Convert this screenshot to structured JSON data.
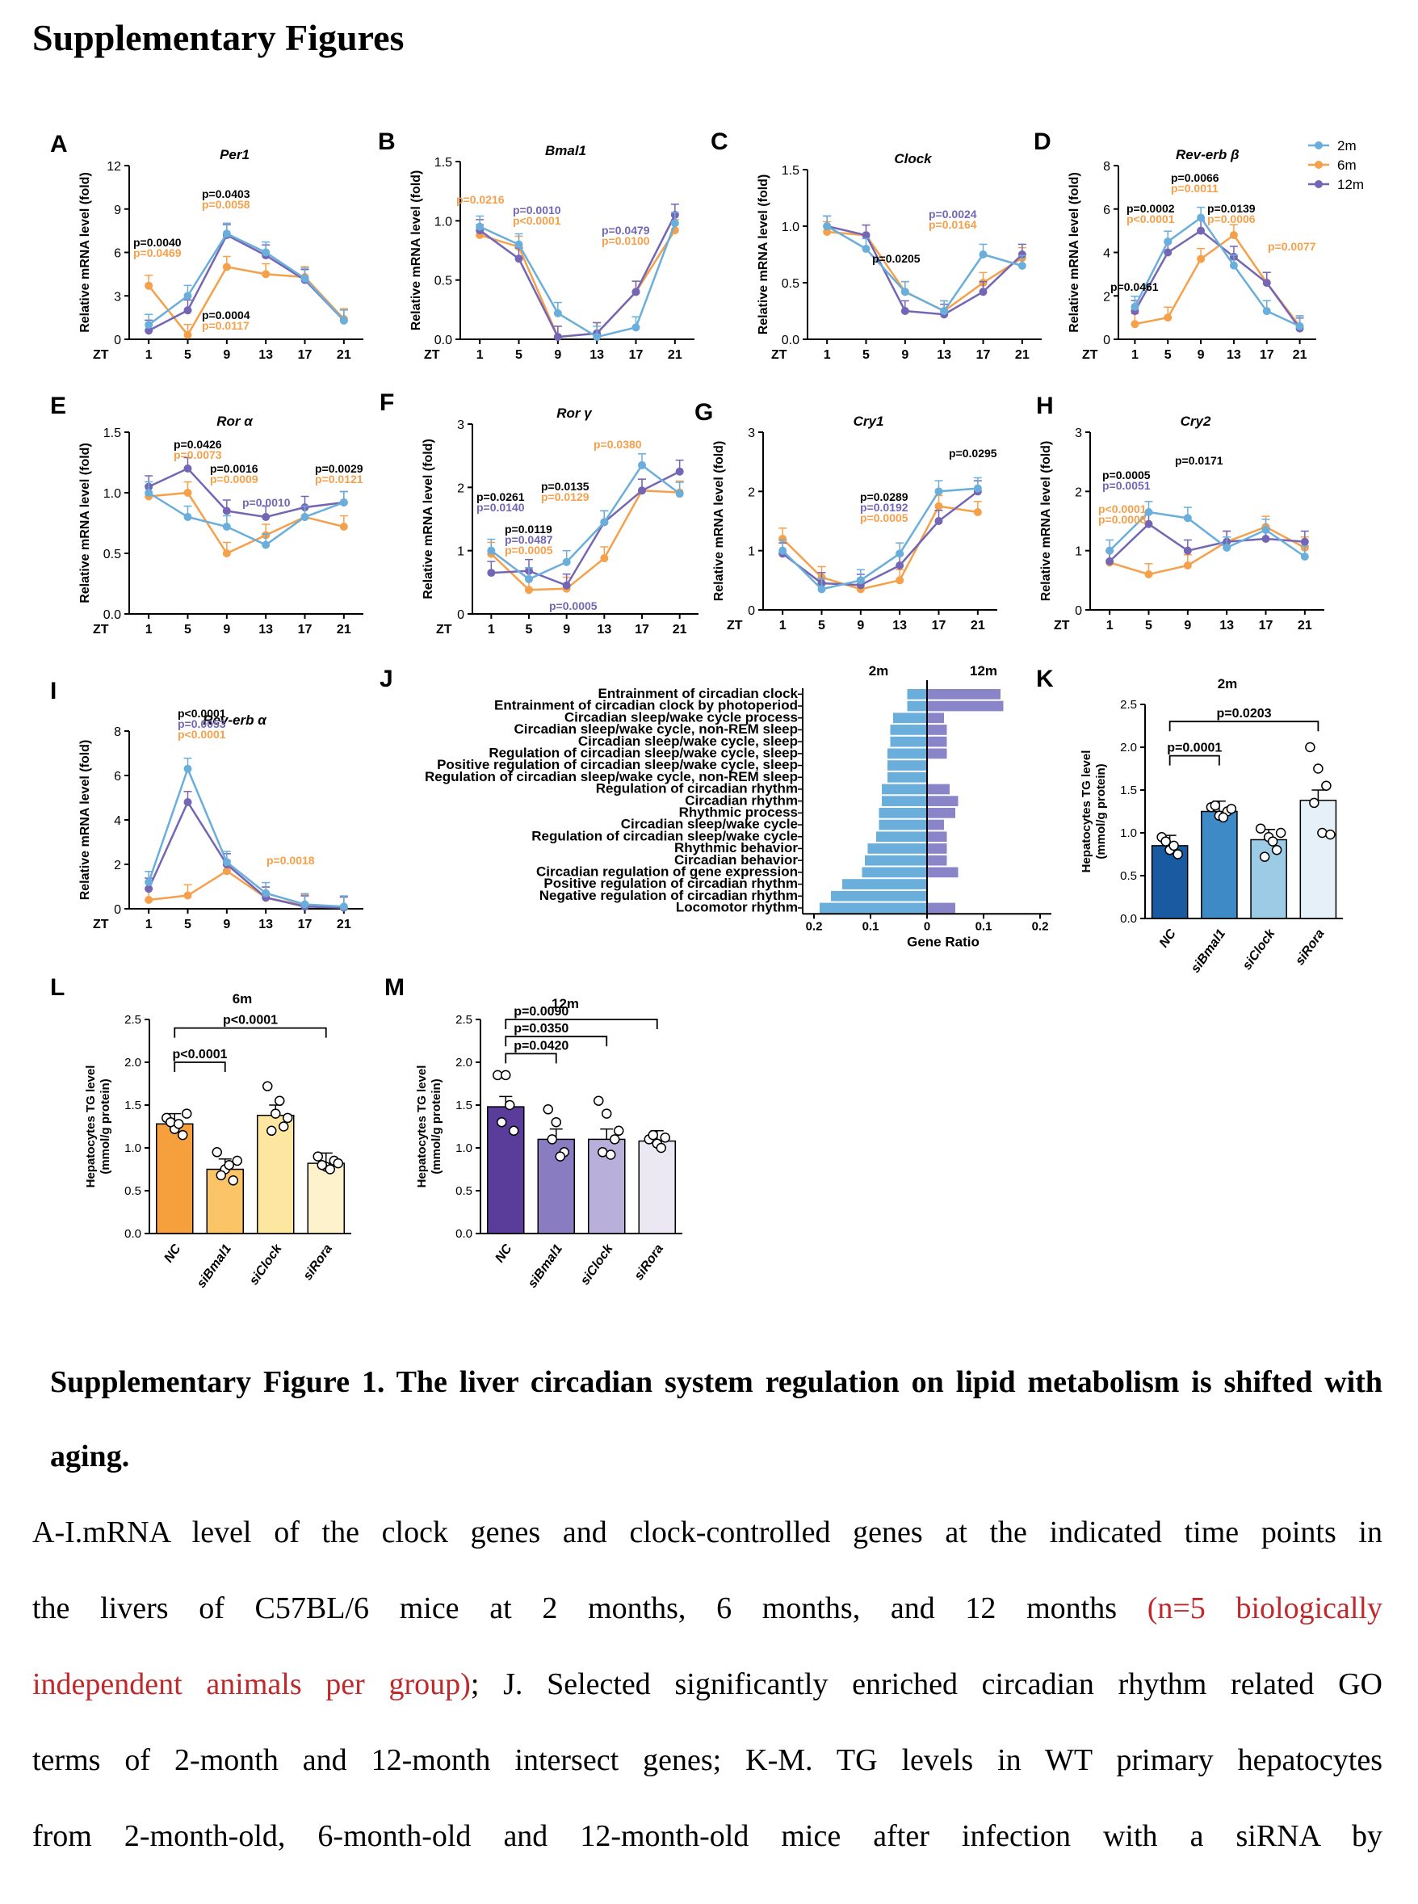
{
  "heading": "Supplementary Figures",
  "colors": {
    "m2": "#6aaedb",
    "m6": "#f5a04a",
    "m12": "#7466b5"
  },
  "legend": [
    "2m",
    "6m",
    "12m"
  ],
  "zt_label": "ZT",
  "zt_ticks": [
    "1",
    "5",
    "9",
    "13",
    "17",
    "21"
  ],
  "ylabel_mrna": "Relative mRNA level (fold)",
  "ylabel_tg": [
    "Hepatocytes TG level",
    "(mmol/g protein)"
  ],
  "line_panels": [
    {
      "letter": "A",
      "gene": "Per1",
      "yticks": [
        "0",
        "3",
        "6",
        "9",
        "12"
      ],
      "ymax": 12,
      "m2": [
        1.0,
        3.0,
        7.3,
        6.0,
        4.2,
        1.3
      ],
      "m6": [
        3.7,
        0.3,
        5.0,
        4.5,
        4.3,
        1.4
      ],
      "m12": [
        0.6,
        2.0,
        7.2,
        5.8,
        4.1,
        1.3
      ],
      "pvals": [
        {
          "p2": "p=0.0040",
          "p6": "p=0.0469"
        },
        {
          "p2": "p=0.0403",
          "p6": "p=0.0058"
        },
        {
          "p2": "p=0.0004",
          "p6": "p=0.0117"
        }
      ]
    },
    {
      "letter": "B",
      "gene": "Bmal1",
      "yticks": [
        "0.0",
        "0.5",
        "1.0",
        "1.5"
      ],
      "ymax": 1.5,
      "m2": [
        0.95,
        0.8,
        0.22,
        0.02,
        0.1,
        0.98
      ],
      "m6": [
        0.88,
        0.78,
        0.02,
        0.05,
        0.4,
        0.92
      ],
      "m12": [
        0.92,
        0.68,
        0.02,
        0.05,
        0.4,
        1.05
      ],
      "pvals": [
        {
          "p6": "p=0.0216"
        },
        {
          "p12": "p=0.0010",
          "p6": "p<0.0001"
        },
        {
          "p12": "p=0.0479",
          "p6": "p=0.0100"
        }
      ]
    },
    {
      "letter": "C",
      "gene": "Clock",
      "yticks": [
        "0.0",
        "0.5",
        "1.0",
        "1.5"
      ],
      "ymax": 1.5,
      "m2": [
        1.0,
        0.8,
        0.42,
        0.25,
        0.75,
        0.65
      ],
      "m6": [
        0.95,
        0.92,
        0.42,
        0.25,
        0.5,
        0.72
      ],
      "m12": [
        1.0,
        0.92,
        0.25,
        0.22,
        0.42,
        0.75
      ],
      "pvals": [
        {
          "p2": "p=0.0205"
        },
        {
          "p12": "p=0.0024",
          "p6": "p=0.0164"
        }
      ]
    },
    {
      "letter": "D",
      "gene": "Rev-erb β",
      "yticks": [
        "0",
        "2",
        "4",
        "6",
        "8"
      ],
      "ymax": 8,
      "m2": [
        1.5,
        4.5,
        5.6,
        3.4,
        1.3,
        0.6
      ],
      "m6": [
        0.7,
        1.0,
        3.7,
        4.8,
        2.6,
        0.6
      ],
      "m12": [
        1.3,
        4.0,
        5.0,
        3.8,
        2.6,
        0.5
      ],
      "pvals": [
        {
          "p2": "p=0.0461"
        },
        {
          "p2": "p=0.0002",
          "p6": "p<0.0001"
        },
        {
          "p2": "p=0.0066",
          "p6": "p=0.0011"
        },
        {
          "p2": "p=0.0139",
          "p6": "p=0.0006"
        },
        {
          "p6": "p=0.0077"
        }
      ]
    },
    {
      "letter": "E",
      "gene": "Ror α",
      "yticks": [
        "0.0",
        "0.5",
        "1.0",
        "1.5"
      ],
      "ymax": 1.5,
      "m2": [
        1.0,
        0.8,
        0.72,
        0.57,
        0.8,
        0.92
      ],
      "m6": [
        0.97,
        1.0,
        0.5,
        0.65,
        0.8,
        0.72
      ],
      "m12": [
        1.05,
        1.2,
        0.85,
        0.8,
        0.88,
        0.92
      ],
      "pvals": [
        {
          "p2": "p=0.0426",
          "p6": "p=0.0073"
        },
        {
          "p2": "p=0.0016",
          "p6": "p=0.0009"
        },
        {
          "p12": "p=0.0010"
        },
        {
          "p2": "p=0.0029",
          "p6": "p=0.0121"
        }
      ]
    },
    {
      "letter": "F",
      "gene": "Ror γ",
      "yticks": [
        "0",
        "1",
        "2",
        "3"
      ],
      "ymax": 3,
      "m2": [
        1.0,
        0.55,
        0.82,
        1.45,
        2.35,
        1.9
      ],
      "m6": [
        0.95,
        0.38,
        0.4,
        0.88,
        1.95,
        1.92
      ],
      "m12": [
        0.65,
        0.68,
        0.45,
        1.45,
        1.95,
        2.25
      ],
      "pvals": [
        {
          "p2": "p=0.0261",
          "p12": "p=0.0140"
        },
        {
          "p2": "p=0.0119",
          "p12": "p=0.0487",
          "p6": "p=0.0005"
        },
        {
          "p2": "p=0.0135",
          "p6": "p=0.0129"
        },
        {
          "p6": "p=0.0380"
        },
        {
          "p12": "p=0.0005"
        }
      ]
    },
    {
      "letter": "G",
      "gene": "Cry1",
      "yticks": [
        "0",
        "1",
        "2",
        "3"
      ],
      "ymax": 3,
      "m2": [
        1.0,
        0.35,
        0.5,
        0.95,
        2.0,
        2.05
      ],
      "m6": [
        1.2,
        0.55,
        0.35,
        0.5,
        1.75,
        1.65
      ],
      "m12": [
        0.95,
        0.45,
        0.42,
        0.75,
        1.5,
        2.0
      ],
      "pvals": [
        {
          "p2": "p=0.0295"
        },
        {
          "p2": "p=0.0289",
          "p12": "p=0.0192",
          "p6": "p=0.0005"
        }
      ]
    },
    {
      "letter": "H",
      "gene": "Cry2",
      "yticks": [
        "0",
        "1",
        "2",
        "3"
      ],
      "ymax": 3,
      "m2": [
        1.0,
        1.65,
        1.55,
        1.05,
        1.35,
        0.9
      ],
      "m6": [
        0.8,
        0.6,
        0.75,
        1.15,
        1.4,
        1.05
      ],
      "m12": [
        0.82,
        1.45,
        1.0,
        1.15,
        1.2,
        1.15
      ],
      "pvals": [
        {
          "p2": "p=0.0171"
        },
        {
          "p2": "p=0.0005",
          "p12": "p=0.0051"
        },
        {
          "p6": "p<0.0001",
          "p6b": "p=0.0008"
        }
      ]
    },
    {
      "letter": "I",
      "gene": "Rev-erb α",
      "yticks": [
        "0",
        "2",
        "4",
        "6",
        "8"
      ],
      "ymax": 8,
      "m2": [
        1.2,
        6.3,
        2.1,
        0.7,
        0.2,
        0.1
      ],
      "m6": [
        0.4,
        0.6,
        1.7,
        0.5,
        0.15,
        0.05
      ],
      "m12": [
        0.9,
        4.8,
        2.0,
        0.5,
        0.1,
        0.05
      ],
      "pvals": [
        {
          "p2": "p<0.0001",
          "p12": "p=0.0053",
          "p6": "p<0.0001"
        },
        {
          "p6": "p=0.0018"
        }
      ]
    }
  ],
  "panel_j": {
    "letter": "J",
    "terms": [
      "Entrainment of circadian clock",
      "Entrainment of circadian clock by photoperiod",
      "Circadian sleep/wake cycle process",
      "Circadian sleep/wake cycle, non-REM sleep",
      "Circadian sleep/wake cycle, sleep",
      "Regulation of circadian sleep/wake cycle, sleep",
      "Positive regulation of circadian sleep/wake cycle, sleep",
      "Regulation of circadian sleep/wake cycle, non-REM sleep",
      "Regulation of circadian rhythm",
      "Circadian rhythm",
      "Rhythmic process",
      "Circadian sleep/wake cycle",
      "Regulation of circadian sleep/wake cycle",
      "Rhythmic behavior",
      "Circadian behavior",
      "Circadian regulation of gene expression",
      "Positive regulation of circadian rhythm",
      "Negative regulation of circadian rhythm",
      "Locomotor rhythm"
    ],
    "left_2m": [
      0.035,
      0.035,
      0.06,
      0.065,
      0.065,
      0.07,
      0.07,
      0.07,
      0.08,
      0.08,
      0.085,
      0.085,
      0.09,
      0.105,
      0.11,
      0.115,
      0.15,
      0.17,
      0.19
    ],
    "right_12m": [
      0.13,
      0.135,
      0.03,
      0.035,
      0.035,
      0.035,
      0.0,
      0.0,
      0.04,
      0.055,
      0.05,
      0.03,
      0.035,
      0.035,
      0.035,
      0.055,
      0.0,
      0.0,
      0.05
    ],
    "header_left": "2m",
    "header_right": "12m",
    "xticks": [
      "0.2",
      "0.1",
      "0",
      "0.1",
      "0.2"
    ],
    "xlabel": "Gene Ratio"
  },
  "bar_panels": [
    {
      "letter": "K",
      "title": "2m",
      "yticks": [
        "0.0",
        "0.5",
        "1.0",
        "1.5",
        "2.0",
        "2.5"
      ],
      "categories": [
        "NC",
        "siBmal1",
        "siClock",
        "siRora"
      ],
      "values": [
        0.85,
        1.25,
        0.92,
        1.38
      ],
      "fills": [
        "#1a5aa0",
        "#3d8ac6",
        "#9ccbe6",
        "#e6f0f8"
      ],
      "points": [
        [
          0.95,
          0.8,
          0.75,
          0.9,
          0.85
        ],
        [
          1.3,
          1.2,
          1.25,
          1.32,
          1.18,
          1.28
        ],
        [
          1.05,
          0.95,
          0.8,
          0.72,
          0.9,
          1.0
        ],
        [
          2.0,
          1.75,
          1.55,
          1.35,
          1.0,
          0.98
        ]
      ],
      "brackets": [
        {
          "text": "p=0.0001"
        },
        {
          "text": "p=0.0203"
        }
      ]
    },
    {
      "letter": "L",
      "title": "6m",
      "yticks": [
        "0.0",
        "0.5",
        "1.0",
        "1.5",
        "2.0",
        "2.5"
      ],
      "categories": [
        "NC",
        "siBmal1",
        "siClock",
        "siRora"
      ],
      "values": [
        1.28,
        0.75,
        1.38,
        0.82
      ],
      "fills": [
        "#f5a03c",
        "#fbc466",
        "#fde7a0",
        "#fdf2cc"
      ],
      "points": [
        [
          1.35,
          1.22,
          1.15,
          1.3,
          1.28,
          1.4
        ],
        [
          0.95,
          0.75,
          0.62,
          0.68,
          0.8,
          0.85
        ],
        [
          1.72,
          1.4,
          1.25,
          1.2,
          1.55,
          1.35
        ],
        [
          0.9,
          0.78,
          0.85,
          0.8,
          0.75,
          0.82
        ]
      ],
      "brackets": [
        {
          "text": "p<0.0001"
        },
        {
          "text": "p<0.0001"
        }
      ]
    },
    {
      "letter": "M",
      "title": "12m",
      "yticks": [
        "0.0",
        "0.5",
        "1.0",
        "1.5",
        "2.0",
        "2.5"
      ],
      "categories": [
        "NC",
        "siBmal1",
        "siClock",
        "siRora"
      ],
      "values": [
        1.48,
        1.1,
        1.1,
        1.08
      ],
      "fills": [
        "#5a3c9a",
        "#8a7cc0",
        "#b8b0db",
        "#ebe8f4"
      ],
      "points": [
        [
          1.85,
          1.85,
          1.2,
          1.3,
          1.5
        ],
        [
          1.45,
          1.3,
          0.95,
          1.1,
          0.9
        ],
        [
          1.55,
          1.4,
          1.1,
          0.95,
          0.92,
          1.2
        ],
        [
          1.1,
          1.05,
          1.12,
          1.15,
          1.0
        ]
      ],
      "brackets": [
        {
          "text": "p=0.0420"
        },
        {
          "text": "p=0.0350"
        },
        {
          "text": "p=0.0090"
        }
      ]
    }
  ],
  "caption_title": "Supplementary Figure 1. The liver circadian system regulation on lipid metabolism is shifted with aging.",
  "caption_lines": [
    {
      "a": "A-I.mRNA level of the clock genes and clock-controlled genes at the indicated time points in"
    },
    {
      "a": "the livers of C57BL/6 mice at 2 months, 6 months, and 12 months ",
      "red": "(n=5 biologically"
    },
    {
      "red": "independent animals per group)",
      "a": "; J. Selected significantly enriched circadian rhythm related GO"
    },
    {
      "a": "terms of 2-month and 12-month intersect genes; K-M. TG levels in WT primary hepatocytes"
    },
    {
      "a": "from 2-month-old, 6-month-old and 12-month-old mice after infection with a siRNA by"
    }
  ]
}
